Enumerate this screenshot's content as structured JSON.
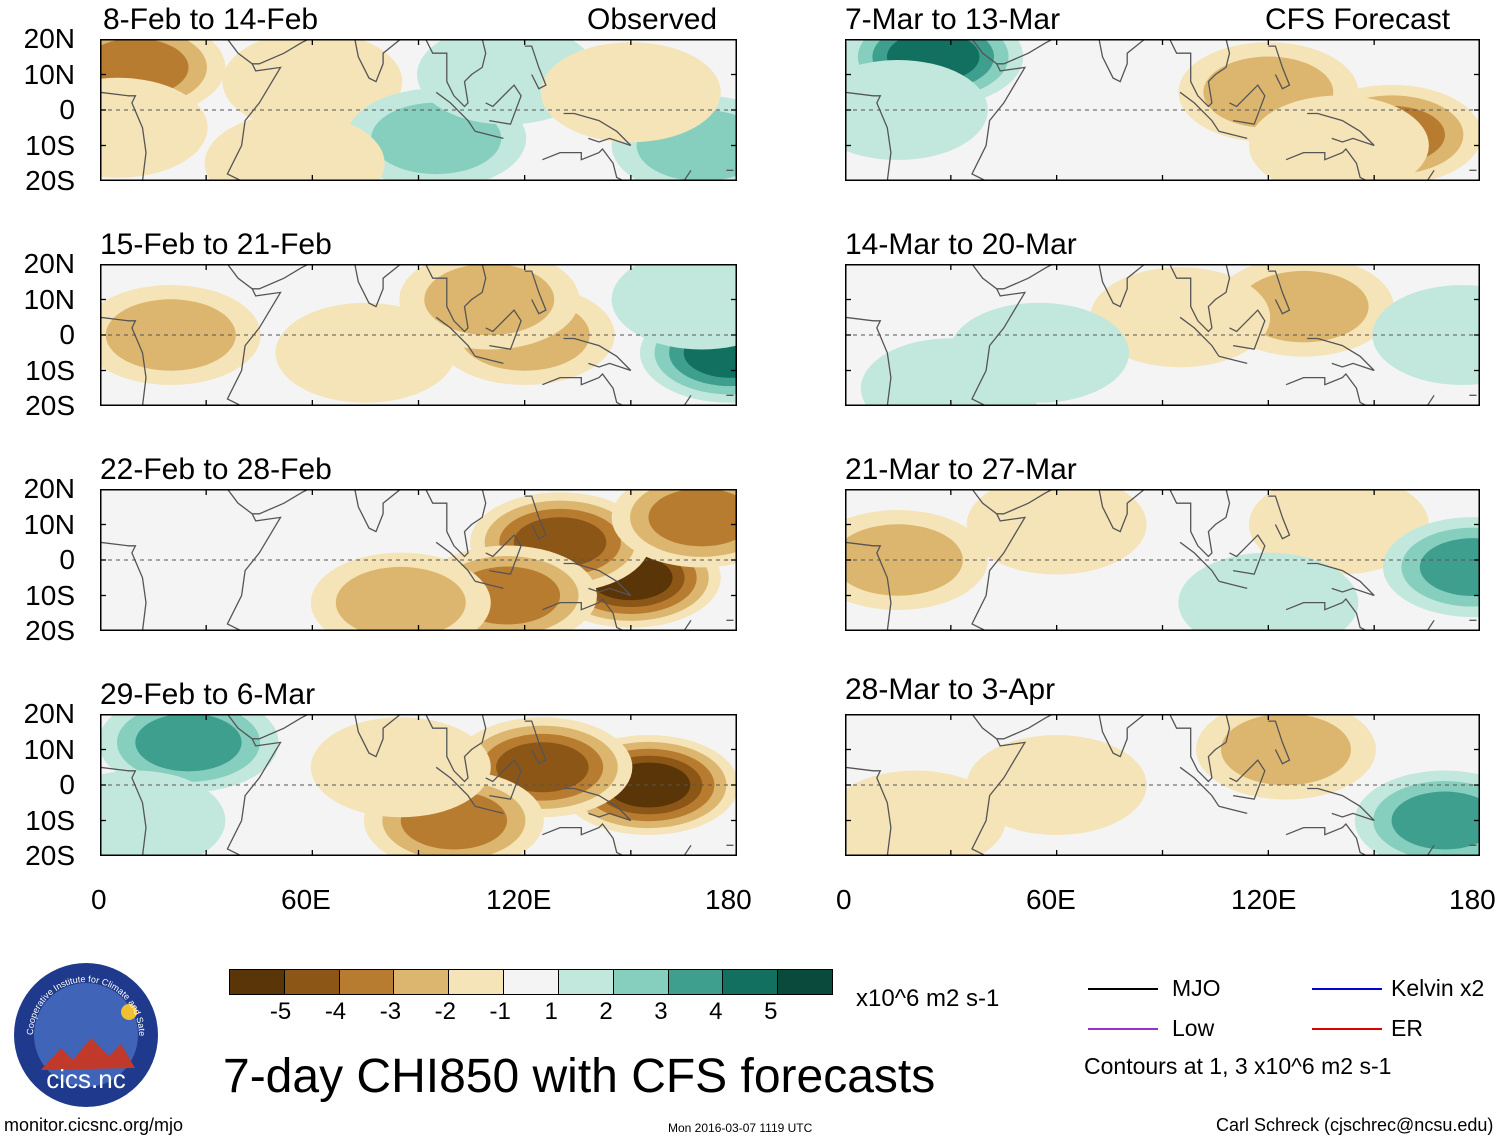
{
  "app": {
    "main_title": "7-day CHI850 with CFS forecasts",
    "website": "monitor.cicsnc.org/mjo",
    "timestamp": "Mon 2016-03-07 1119 UTC",
    "author": "Carl Schreck (cjschrec@ncsu.edu)",
    "logo_text": "cics.nc",
    "logo_ring_text": "Cooperative Institute for Climate and Satellites"
  },
  "columns": {
    "left_label": "Observed",
    "right_label": "CFS Forecast"
  },
  "axes": {
    "lat_ticks": [
      "20N",
      "10N",
      "0",
      "10S",
      "20S"
    ],
    "lon_ticks": [
      "0",
      "60E",
      "120E",
      "180"
    ]
  },
  "colorbar": {
    "labels": [
      "-5",
      "-4",
      "-3",
      "-2",
      "-1",
      "1",
      "2",
      "3",
      "4",
      "5"
    ],
    "colors": [
      "#5a3508",
      "#8c5616",
      "#b87c30",
      "#dcb66e",
      "#f5e4b8",
      "#f4f4f4",
      "#c2e8de",
      "#86cfbf",
      "#3f9f8e",
      "#11705f",
      "#0a4a3c"
    ],
    "units": "x10^6 m2 s-1"
  },
  "legend": {
    "mjo": "MJO",
    "kelvin": "Kelvin x2",
    "low": "Low",
    "er": "ER",
    "contour_note": "Contours at 1, 3 x10^6 m2 s-1",
    "colors": {
      "mjo": "#000000",
      "kelvin": "#0000dd",
      "low": "#9932cc",
      "er": "#dd0000"
    }
  },
  "chart_data": [
    {
      "type": "heatmap",
      "title": "8-Feb to 14-Feb",
      "column": "Observed",
      "xlim": [
        0,
        180
      ],
      "ylim": [
        -20,
        20
      ],
      "xlabel": "",
      "ylabel": "",
      "anomalies": [
        {
          "lon": 10,
          "lat": 12,
          "value": -3
        },
        {
          "lon": 60,
          "lat": 8,
          "value": -1
        },
        {
          "lon": 5,
          "lat": -5,
          "value": -1
        },
        {
          "lon": 95,
          "lat": -8,
          "value": 2
        },
        {
          "lon": 115,
          "lat": 10,
          "value": 1
        },
        {
          "lon": 170,
          "lat": -10,
          "value": 2
        },
        {
          "lon": 150,
          "lat": 5,
          "value": -1
        },
        {
          "lon": 55,
          "lat": -15,
          "value": -1
        }
      ]
    },
    {
      "type": "heatmap",
      "title": "15-Feb to 21-Feb",
      "column": "Observed",
      "xlim": [
        0,
        180
      ],
      "ylim": [
        -20,
        20
      ],
      "xlabel": "",
      "ylabel": "",
      "anomalies": [
        {
          "lon": 20,
          "lat": 0,
          "value": -2
        },
        {
          "lon": 120,
          "lat": 0,
          "value": -2
        },
        {
          "lon": 110,
          "lat": 10,
          "value": -2
        },
        {
          "lon": 178,
          "lat": -5,
          "value": 4
        },
        {
          "lon": 170,
          "lat": 10,
          "value": 1
        },
        {
          "lon": 75,
          "lat": -5,
          "value": -1
        }
      ]
    },
    {
      "type": "heatmap",
      "title": "22-Feb to 28-Feb",
      "column": "Observed",
      "xlim": [
        0,
        180
      ],
      "ylim": [
        -20,
        20
      ],
      "xlabel": "",
      "ylabel": "",
      "anomalies": [
        {
          "lon": 150,
          "lat": -5,
          "value": -5
        },
        {
          "lon": 130,
          "lat": 5,
          "value": -4
        },
        {
          "lon": 115,
          "lat": -10,
          "value": -3
        },
        {
          "lon": 85,
          "lat": -12,
          "value": -2
        },
        {
          "lon": 170,
          "lat": 12,
          "value": -3
        }
      ]
    },
    {
      "type": "heatmap",
      "title": "29-Feb to 6-Mar",
      "column": "Observed",
      "xlim": [
        0,
        180
      ],
      "ylim": [
        -20,
        20
      ],
      "xlabel": "",
      "ylabel": "",
      "anomalies": [
        {
          "lon": 155,
          "lat": 0,
          "value": -5
        },
        {
          "lon": 125,
          "lat": 5,
          "value": -4
        },
        {
          "lon": 100,
          "lat": -10,
          "value": -3
        },
        {
          "lon": 25,
          "lat": 12,
          "value": 3
        },
        {
          "lon": 10,
          "lat": -10,
          "value": 1
        },
        {
          "lon": 85,
          "lat": 5,
          "value": -1
        }
      ]
    },
    {
      "type": "heatmap",
      "title": "7-Mar to 13-Mar",
      "column": "CFS Forecast",
      "xlim": [
        0,
        180
      ],
      "ylim": [
        -20,
        20
      ],
      "xlabel": "",
      "ylabel": "",
      "anomalies": [
        {
          "lon": 25,
          "lat": 15,
          "value": 4
        },
        {
          "lon": 15,
          "lat": 0,
          "value": 1
        },
        {
          "lon": 155,
          "lat": -7,
          "value": -3
        },
        {
          "lon": 120,
          "lat": 5,
          "value": -2
        },
        {
          "lon": 140,
          "lat": -10,
          "value": -1
        }
      ]
    },
    {
      "type": "heatmap",
      "title": "14-Mar to 20-Mar",
      "column": "CFS Forecast",
      "xlim": [
        0,
        180
      ],
      "ylim": [
        -20,
        20
      ],
      "xlabel": "",
      "ylabel": "",
      "anomalies": [
        {
          "lon": 130,
          "lat": 8,
          "value": -2
        },
        {
          "lon": 95,
          "lat": 5,
          "value": -1
        },
        {
          "lon": 175,
          "lat": 0,
          "value": 1
        },
        {
          "lon": 55,
          "lat": -5,
          "value": 1
        },
        {
          "lon": 30,
          "lat": -15,
          "value": 1
        }
      ]
    },
    {
      "type": "heatmap",
      "title": "21-Mar to 27-Mar",
      "column": "CFS Forecast",
      "xlim": [
        0,
        180
      ],
      "ylim": [
        -20,
        20
      ],
      "xlabel": "",
      "ylabel": "",
      "anomalies": [
        {
          "lon": 15,
          "lat": 0,
          "value": -2
        },
        {
          "lon": 60,
          "lat": 10,
          "value": -1
        },
        {
          "lon": 140,
          "lat": 10,
          "value": -1
        },
        {
          "lon": 178,
          "lat": -2,
          "value": 3
        },
        {
          "lon": 120,
          "lat": -12,
          "value": 1
        }
      ]
    },
    {
      "type": "heatmap",
      "title": "28-Mar to 3-Apr",
      "column": "CFS Forecast",
      "xlim": [
        0,
        180
      ],
      "ylim": [
        -20,
        20
      ],
      "xlabel": "",
      "ylabel": "",
      "anomalies": [
        {
          "lon": 125,
          "lat": 10,
          "value": -2
        },
        {
          "lon": 20,
          "lat": -10,
          "value": -1
        },
        {
          "lon": 170,
          "lat": -10,
          "value": 3
        },
        {
          "lon": 60,
          "lat": 0,
          "value": -1
        }
      ]
    }
  ]
}
